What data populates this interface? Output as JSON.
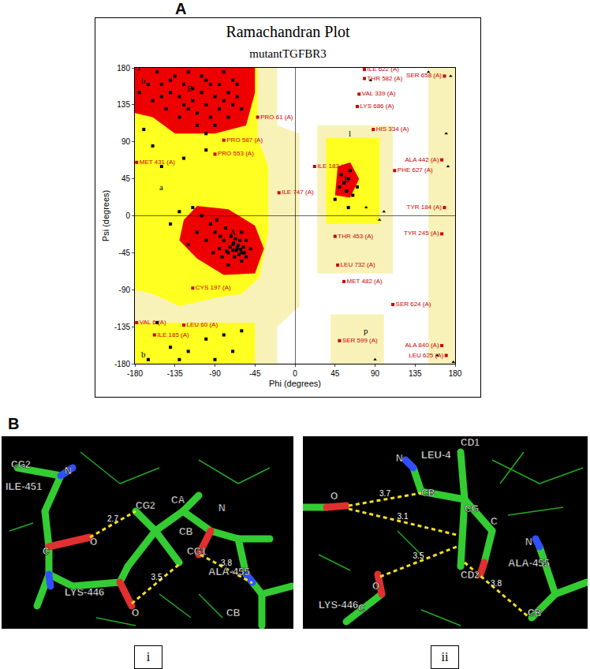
{
  "chart_data": {
    "type": "scatter",
    "panel_labels": [
      "A",
      "B"
    ],
    "title": "Ramachandran Plot",
    "subtitle": "mutantTGFBR3",
    "x_label": "Phi (degrees)",
    "y_label": "Psi (degrees)",
    "xlim": [
      -180,
      180
    ],
    "ylim": [
      -180,
      180
    ],
    "xticks": [
      -180,
      -135,
      -90,
      -45,
      0,
      45,
      90,
      135,
      180
    ],
    "yticks": [
      -180,
      -135,
      -90,
      -45,
      0,
      45,
      90,
      135,
      180
    ],
    "grid": false,
    "series": [
      {
        "color": "#000000",
        "marker": "square",
        "x": [
          -150,
          -140,
          -130,
          -125,
          -120,
          -115,
          -110,
          -105,
          -100,
          -95,
          -90,
          -85,
          -80,
          -75,
          -70,
          -65,
          -135,
          -120,
          -100,
          -85,
          -145,
          -160,
          -155,
          -110,
          -95,
          -75,
          -130,
          -140,
          -105,
          -65,
          -115,
          -90,
          -125,
          -70,
          -150,
          -80,
          -60,
          -165,
          -175,
          -100,
          -65,
          -60,
          -70,
          -62,
          -58,
          -75,
          -68,
          -55,
          -72,
          -80,
          -85,
          -90,
          -60,
          -50,
          -66,
          -64,
          -70,
          -78,
          -95,
          -100,
          -57,
          -63,
          -67,
          -73,
          -82,
          -88,
          -105,
          -110,
          -120,
          -60,
          -75,
          -55,
          -69,
          -61,
          -77,
          -84,
          -92,
          -115,
          -130,
          -140,
          -150,
          -125,
          -100,
          -160,
          -170,
          -140,
          -120,
          -90,
          -165,
          -155,
          -100,
          -70,
          -80,
          -60,
          -130,
          50,
          55,
          60,
          58,
          65,
          52,
          62,
          70,
          45,
          60
        ],
        "values": [
          160,
          150,
          145,
          160,
          130,
          140,
          125,
          150,
          135,
          120,
          145,
          130,
          140,
          150,
          135,
          145,
          170,
          175,
          165,
          160,
          130,
          140,
          175,
          110,
          160,
          120,
          120,
          165,
          170,
          160,
          155,
          110,
          135,
          165,
          145,
          175,
          130,
          160,
          150,
          100,
          -40,
          -45,
          -35,
          -30,
          -38,
          -45,
          -50,
          -50,
          -25,
          -30,
          -40,
          -20,
          -20,
          -40,
          -42,
          -36,
          -42,
          -15,
          -10,
          -30,
          -45,
          -47,
          -28,
          -38,
          -50,
          -5,
          0,
          -20,
          -35,
          -55,
          -60,
          -30,
          -33,
          -41,
          -43,
          -25,
          -45,
          10,
          5,
          -10,
          60,
          70,
          80,
          85,
          105,
          -160,
          -165,
          -175,
          -175,
          -130,
          -150,
          -165,
          -145,
          -140,
          -175,
          35,
          40,
          45,
          30,
          25,
          50,
          55,
          35,
          20,
          10
        ]
      },
      {
        "color": "#000000",
        "marker": "triangle",
        "x": [
          80,
          95,
          85,
          175,
          178,
          160,
          170,
          172,
          90,
          -175,
          100,
          150
        ],
        "values": [
          10,
          -5,
          165,
          170,
          -178,
          -170,
          100,
          60,
          -175,
          178,
          5,
          175
        ]
      }
    ],
    "annotations": [
      {
        "text": "PRO 61 (A)",
        "x": -42,
        "y": 120,
        "color": "#cc0000",
        "marker": "square"
      },
      {
        "text": "PRO 587 (A)",
        "x": -80,
        "y": 92,
        "color": "#cc0000",
        "marker": "square"
      },
      {
        "text": "PRO 553 (A)",
        "x": -90,
        "y": 75,
        "color": "#cc0000",
        "marker": "square"
      },
      {
        "text": "MET 431 (A)",
        "x": -178,
        "y": 65,
        "color": "#cc0000",
        "marker": "square"
      },
      {
        "text": "ILE 183 (A)",
        "x": 22,
        "y": 60,
        "color": "#cc0000",
        "marker": "square"
      },
      {
        "text": "ILE 747 (A)",
        "x": -18,
        "y": 28,
        "color": "#cc0000",
        "marker": "square"
      },
      {
        "text": "HIS 334 (A)",
        "x": 88,
        "y": 105,
        "color": "#cc0000",
        "marker": "square"
      },
      {
        "text": "ILE 622 (A)",
        "x": 78,
        "y": 178,
        "color": "#cc0000",
        "marker": "square"
      },
      {
        "text": "THR 582 (A)",
        "x": 78,
        "y": 167,
        "color": "#cc0000",
        "marker": "square"
      },
      {
        "text": "VAL 339 (A)",
        "x": 72,
        "y": 148,
        "color": "#cc0000",
        "marker": "square"
      },
      {
        "text": "LYS 686 (A)",
        "x": 70,
        "y": 133,
        "color": "#cc0000",
        "marker": "square"
      },
      {
        "text": "SER 658 (A)",
        "x": 168,
        "y": 170,
        "color": "#cc0000",
        "marker": "square"
      },
      {
        "text": "ALA 442 (A)",
        "x": 165,
        "y": 68,
        "color": "#cc0000",
        "marker": "square"
      },
      {
        "text": "PHE 627 (A)",
        "x": 112,
        "y": 55,
        "color": "#cc0000",
        "marker": "square"
      },
      {
        "text": "TYR 184 (A)",
        "x": 168,
        "y": 10,
        "color": "#cc0000",
        "marker": "square"
      },
      {
        "text": "THR 453 (A)",
        "x": 45,
        "y": -25,
        "color": "#cc0000",
        "marker": "square"
      },
      {
        "text": "TYR 245 (A)",
        "x": 165,
        "y": -22,
        "color": "#cc0000",
        "marker": "square"
      },
      {
        "text": "LEU 732 (A)",
        "x": 48,
        "y": -60,
        "color": "#cc0000",
        "marker": "square"
      },
      {
        "text": "MET 482 (A)",
        "x": 55,
        "y": -80,
        "color": "#cc0000",
        "marker": "square"
      },
      {
        "text": "SER 624 (A)",
        "x": 110,
        "y": -108,
        "color": "#cc0000",
        "marker": "square"
      },
      {
        "text": "CYS 197 (A)",
        "x": -115,
        "y": -88,
        "color": "#cc0000",
        "marker": "square"
      },
      {
        "text": "VAL 6 (A)",
        "x": -178,
        "y": -130,
        "color": "#cc0000",
        "marker": "square"
      },
      {
        "text": "LEU 60 (A)",
        "x": -125,
        "y": -133,
        "color": "#cc0000",
        "marker": "square"
      },
      {
        "text": "ILE 185 (A)",
        "x": -158,
        "y": -145,
        "color": "#cc0000",
        "marker": "square"
      },
      {
        "text": "SER 599 (A)",
        "x": 50,
        "y": -152,
        "color": "#cc0000",
        "marker": "square"
      },
      {
        "text": "ALA 840 (A)",
        "x": 165,
        "y": -158,
        "color": "#cc0000",
        "marker": "square"
      },
      {
        "text": "LEU 625 (A)",
        "x": 170,
        "y": -170,
        "color": "#cc0000",
        "marker": "square"
      },
      {
        "text": "A",
        "x": -70,
        "y": -20
      },
      {
        "text": "B",
        "x": -118,
        "y": 155
      },
      {
        "text": "L",
        "x": 58,
        "y": 45
      },
      {
        "text": "a",
        "x": -150,
        "y": 35
      },
      {
        "text": "b",
        "x": -170,
        "y": 165
      },
      {
        "text": "b",
        "x": -170,
        "y": -168
      },
      {
        "text": "l",
        "x": 62,
        "y": 100
      },
      {
        "text": "p",
        "x": 80,
        "y": -140
      }
    ],
    "structure_images": [
      {
        "label": "i",
        "residues": [
          "ILE-451",
          "LYS-446",
          "ALA-455"
        ],
        "atoms": [
          "CG2",
          "N",
          "CG2",
          "CA",
          "CB",
          "CG1",
          "C",
          "O",
          "O",
          "N",
          "CB"
        ],
        "distances": [
          2.7,
          3.5,
          3.8
        ]
      },
      {
        "label": "ii",
        "residues": [
          "LEU-4",
          "LYS-446",
          "ALA-455"
        ],
        "atoms": [
          "N",
          "CD1",
          "CB",
          "CG",
          "C",
          "CD2",
          "O",
          "O",
          "C",
          "N",
          "CB"
        ],
        "distances": [
          3.7,
          3.1,
          3.5,
          3.8
        ]
      }
    ]
  }
}
